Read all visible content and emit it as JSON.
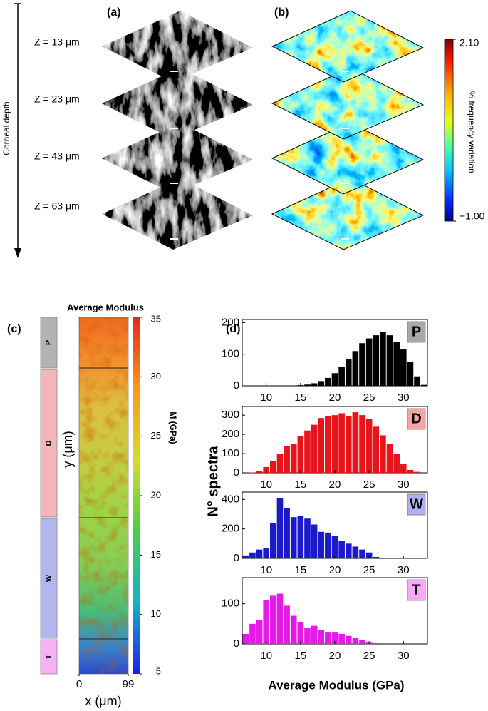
{
  "panels": {
    "a": "(a)",
    "b": "(b)",
    "c": "(c)",
    "d": "(d)"
  },
  "depth": {
    "label": "Corneal depth",
    "layers": [
      "Z = 13 μm",
      "Z = 23 μm",
      "Z = 43 μm",
      "Z = 63 μm"
    ]
  },
  "colorbar_b": {
    "label": "% frequency variation",
    "lim": [
      -1.0,
      2.1
    ],
    "ticks": [
      {
        "value": 2.1,
        "label": "2.10"
      },
      {
        "value": -1,
        "label": "−1.00"
      }
    ]
  },
  "panel_c": {
    "title": "Average Modulus",
    "layers": [
      "P",
      "D",
      "W",
      "T"
    ],
    "layer_colors": [
      "#b3b3b3",
      "#f4b5b8",
      "#b4b4ee",
      "#f8b0f4"
    ],
    "ylabel": "y (μm)",
    "xlabel": "x (μm)",
    "xlim": [
      0,
      99
    ],
    "xticks": [
      0,
      99
    ],
    "colorbar": {
      "label": "M (GPa)",
      "lim": [
        5,
        35
      ],
      "ticks": [
        5,
        10,
        15,
        20,
        25,
        30,
        35
      ]
    }
  },
  "panel_d": {
    "ylabel": "N° spectra",
    "xlabel": "Average Modulus (GPa)"
  },
  "chart_data": [
    {
      "type": "histogram",
      "label": "P",
      "label_color": "#a8a8a8",
      "color": "#000000",
      "bins": [
        6.5,
        7.5,
        8.5,
        9.5,
        10.5,
        11.5,
        12.5,
        13.5,
        14.5,
        15.5,
        16.5,
        17.5,
        18.5,
        19.5,
        20.5,
        21.5,
        22.5,
        23.5,
        24.5,
        25.5,
        26.5,
        27.5,
        28.5,
        29.5,
        30.5,
        31.5,
        32.5,
        33.5
      ],
      "values": [
        0,
        0,
        0,
        0,
        0,
        0,
        0,
        1,
        2,
        4,
        8,
        15,
        25,
        40,
        60,
        85,
        110,
        135,
        150,
        160,
        170,
        160,
        140,
        115,
        75,
        30,
        3
      ],
      "xlim": [
        6.5,
        33.5
      ],
      "xticks": [
        10,
        15,
        20,
        25,
        30
      ],
      "ylim": [
        0,
        210
      ],
      "yticks": [
        0,
        100,
        200
      ]
    },
    {
      "type": "histogram",
      "label": "D",
      "label_color": "#f4a6a6",
      "color": "#e8141b",
      "bins": [
        6.5,
        7.5,
        8.5,
        9.5,
        10.5,
        11.5,
        12.5,
        13.5,
        14.5,
        15.5,
        16.5,
        17.5,
        18.5,
        19.5,
        20.5,
        21.5,
        22.5,
        23.5,
        24.5,
        25.5,
        26.5,
        27.5,
        28.5,
        29.5,
        30.5,
        31.5,
        32.5,
        33.5
      ],
      "values": [
        0,
        2,
        10,
        30,
        60,
        100,
        140,
        150,
        190,
        220,
        250,
        285,
        295,
        300,
        310,
        295,
        315,
        300,
        280,
        240,
        195,
        150,
        100,
        45,
        15,
        5,
        0
      ],
      "xlim": [
        6.5,
        33.5
      ],
      "xticks": [
        10,
        15,
        20,
        25,
        30
      ],
      "ylim": [
        0,
        345
      ],
      "yticks": [
        0,
        100,
        200,
        300
      ]
    },
    {
      "type": "histogram",
      "label": "W",
      "label_color": "#b0b0f0",
      "color": "#1a1acc",
      "bins": [
        6.5,
        7.5,
        8.5,
        9.5,
        10.5,
        11.5,
        12.5,
        13.5,
        14.5,
        15.5,
        16.5,
        17.5,
        18.5,
        19.5,
        20.5,
        21.5,
        22.5,
        23.5,
        24.5,
        25.5,
        26.5,
        27.5,
        28.5,
        29.5,
        30.5,
        31.5,
        32.5,
        33.5
      ],
      "values": [
        20,
        40,
        60,
        70,
        240,
        410,
        340,
        280,
        290,
        270,
        230,
        180,
        175,
        150,
        120,
        100,
        80,
        60,
        40,
        10,
        2,
        0,
        0,
        0,
        0,
        0,
        0
      ],
      "xlim": [
        6.5,
        33.5
      ],
      "xticks": [
        10,
        15,
        20,
        25,
        30
      ],
      "ylim": [
        0,
        450
      ],
      "yticks": [
        0,
        200,
        400
      ]
    },
    {
      "type": "histogram",
      "label": "T",
      "label_color": "#f8a8f8",
      "color": "#e619e6",
      "bins": [
        6.5,
        7.5,
        8.5,
        9.5,
        10.5,
        11.5,
        12.5,
        13.5,
        14.5,
        15.5,
        16.5,
        17.5,
        18.5,
        19.5,
        20.5,
        21.5,
        22.5,
        23.5,
        24.5,
        25.5,
        26.5,
        27.5,
        28.5,
        29.5,
        30.5,
        31.5,
        32.5,
        33.5
      ],
      "values": [
        25,
        50,
        60,
        110,
        120,
        125,
        95,
        70,
        55,
        40,
        45,
        35,
        30,
        30,
        25,
        20,
        15,
        10,
        5,
        2,
        0,
        0,
        0,
        0,
        0,
        0,
        0
      ],
      "xlim": [
        6.5,
        33.5
      ],
      "xticks": [
        10,
        15,
        20,
        25,
        30
      ],
      "ylim": [
        0,
        165
      ],
      "yticks": [
        0,
        100
      ]
    }
  ]
}
